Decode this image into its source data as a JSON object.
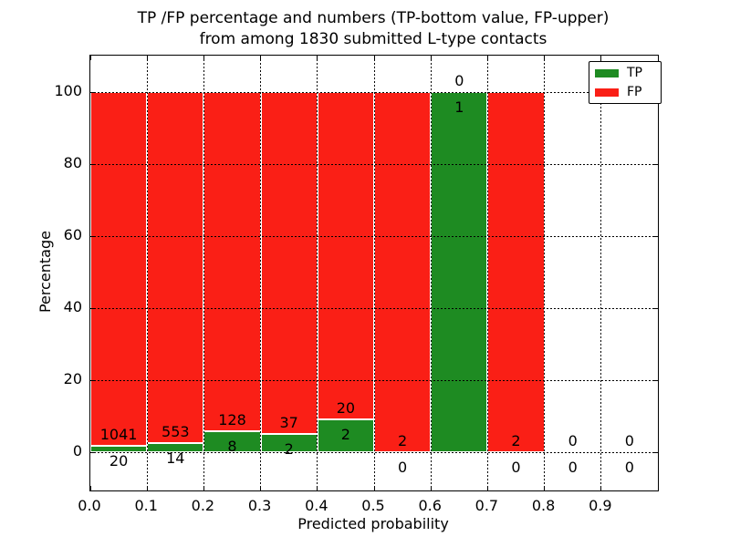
{
  "chart_data": {
    "type": "bar",
    "stacked": true,
    "title_lines": [
      "TP /FP percentage and numbers (TP-bottom value, FP-upper)",
      "from among 1830 submitted L-type contacts"
    ],
    "xlabel": "Predicted probability",
    "ylabel": "Percentage",
    "xlim": [
      0.0,
      1.0
    ],
    "ylim": [
      -11,
      110
    ],
    "grid": "dotted",
    "total_contacts": 1830,
    "xticks": [
      {
        "v": 0.0,
        "label": "0.0"
      },
      {
        "v": 0.1,
        "label": "0.1"
      },
      {
        "v": 0.2,
        "label": "0.2"
      },
      {
        "v": 0.3,
        "label": "0.3"
      },
      {
        "v": 0.4,
        "label": "0.4"
      },
      {
        "v": 0.5,
        "label": "0.5"
      },
      {
        "v": 0.6,
        "label": "0.6"
      },
      {
        "v": 0.7,
        "label": "0.7"
      },
      {
        "v": 0.8,
        "label": "0.8"
      },
      {
        "v": 0.9,
        "label": "0.9"
      }
    ],
    "yticks": [
      {
        "v": 0,
        "label": "0"
      },
      {
        "v": 20,
        "label": "20"
      },
      {
        "v": 40,
        "label": "40"
      },
      {
        "v": 60,
        "label": "60"
      },
      {
        "v": 80,
        "label": "80"
      },
      {
        "v": 100,
        "label": "100"
      }
    ],
    "colors": {
      "tp": "#1e8b22",
      "fp": "#fa1f16"
    },
    "legend": {
      "position": "upper-right",
      "entries": [
        {
          "label": "TP",
          "series": "tp"
        },
        {
          "label": "FP",
          "series": "fp"
        }
      ]
    },
    "bins": [
      {
        "range": [
          0.0,
          0.1
        ],
        "tp": 20,
        "fp": 1041,
        "tp_pct": 1.89
      },
      {
        "range": [
          0.1,
          0.2
        ],
        "tp": 14,
        "fp": 553,
        "tp_pct": 2.47
      },
      {
        "range": [
          0.2,
          0.3
        ],
        "tp": 8,
        "fp": 128,
        "tp_pct": 5.88
      },
      {
        "range": [
          0.3,
          0.4
        ],
        "tp": 2,
        "fp": 37,
        "tp_pct": 5.13
      },
      {
        "range": [
          0.4,
          0.5
        ],
        "tp": 2,
        "fp": 20,
        "tp_pct": 9.09
      },
      {
        "range": [
          0.5,
          0.6
        ],
        "tp": 0,
        "fp": 2,
        "tp_pct": 0
      },
      {
        "range": [
          0.6,
          0.7
        ],
        "tp": 1,
        "fp": 0,
        "tp_pct": 100
      },
      {
        "range": [
          0.7,
          0.8
        ],
        "tp": 0,
        "fp": 2,
        "tp_pct": 0
      },
      {
        "range": [
          0.8,
          0.9
        ],
        "tp": 0,
        "fp": 0,
        "tp_pct": null
      },
      {
        "range": [
          0.9,
          1.0
        ],
        "tp": 0,
        "fp": 0,
        "tp_pct": null
      }
    ]
  }
}
